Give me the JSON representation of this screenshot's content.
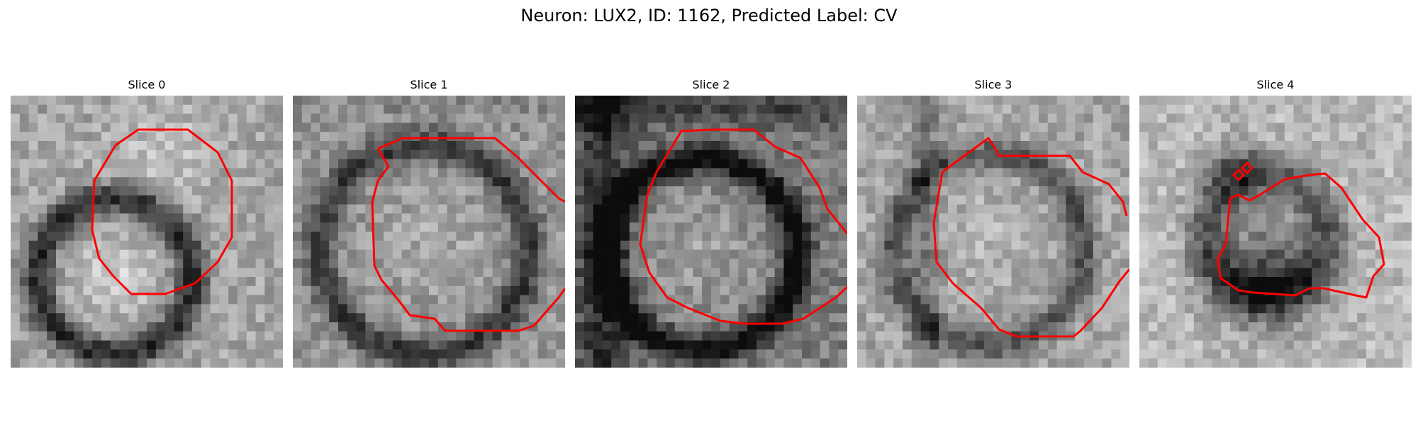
{
  "figure": {
    "title": "Neuron: LUX2, ID: 1162, Predicted Label: CV",
    "contour_color": "#ff0000"
  },
  "panels": [
    {
      "title": "Slice 0"
    },
    {
      "title": "Slice 1"
    },
    {
      "title": "Slice 2"
    },
    {
      "title": "Slice 3"
    },
    {
      "title": "Slice 4"
    }
  ]
}
